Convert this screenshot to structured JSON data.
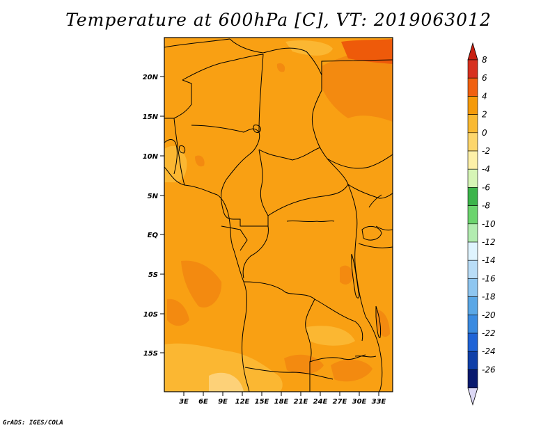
{
  "title": "Temperature at 600hPa [C], VT: 2019063012",
  "credit": "GrADS: IGES/COLA",
  "map": {
    "lat_labels": [
      "20N",
      "15N",
      "10N",
      "5N",
      "EQ",
      "5S",
      "10S",
      "15S"
    ],
    "lon_labels": [
      "3E",
      "6E",
      "9E",
      "12E",
      "15E",
      "18E",
      "21E",
      "24E",
      "27E",
      "30E",
      "33E"
    ]
  },
  "colorbar": {
    "levels": [
      "8",
      "6",
      "4",
      "2",
      "0",
      "-2",
      "-4",
      "-6",
      "-8",
      "-10",
      "-12",
      "-14",
      "-16",
      "-18",
      "-20",
      "-22",
      "-24",
      "-26"
    ],
    "colors": [
      "#d7301f",
      "#f06010",
      "#f59a0a",
      "#f9b932",
      "#fdd66c",
      "#fdf0a8",
      "#d6f5b6",
      "#3cb44b",
      "#6cd46e",
      "#b2ecb0",
      "#dff4ff",
      "#b9ddf7",
      "#8ec6f0",
      "#5aa7e6",
      "#3a8ae0",
      "#1f63d6",
      "#0f3fa8",
      "#08196e"
    ],
    "over_color": "#c82012",
    "under_color": "#dcd8f5"
  },
  "fill_colors": {
    "base": "#f9a013",
    "light": "#fbb732",
    "pale": "#fdd178",
    "warm": "#f38a10",
    "hot": "#ee5a0a"
  }
}
